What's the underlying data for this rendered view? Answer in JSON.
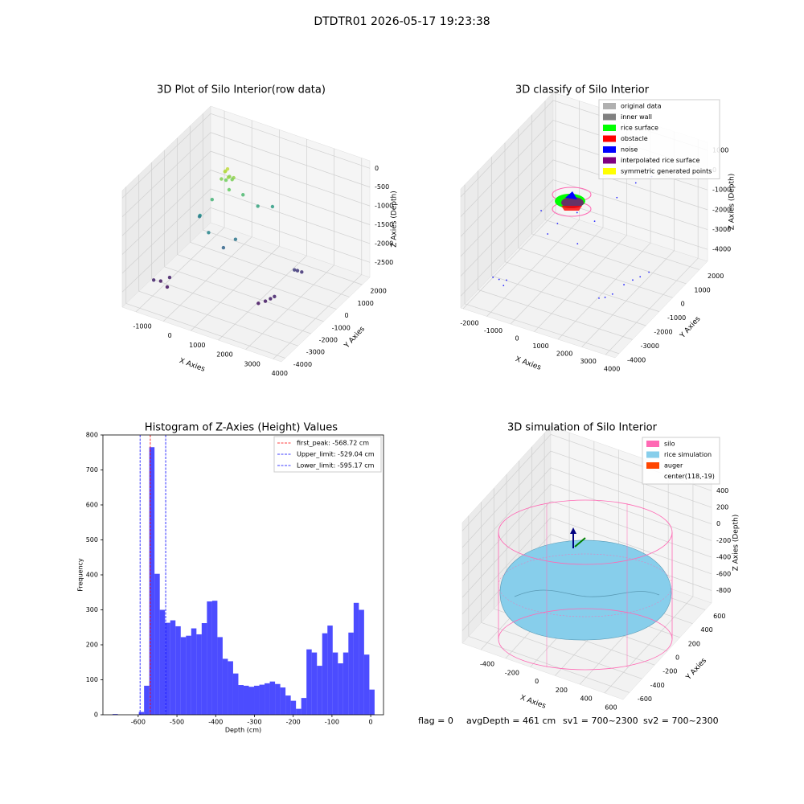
{
  "title": "DTDTR01 2026-05-17 19:23:38",
  "chart_data": [
    {
      "type": "scatter3d",
      "title": "3D Plot of Silo Interior(row data)",
      "xlabel": "X Axies",
      "ylabel": "Y Axies",
      "zlabel": "Z Axies (Depth)",
      "xlim": [
        -1500,
        4300
      ],
      "ylim": [
        -4300,
        2600
      ],
      "zlim": [
        -2900,
        200
      ],
      "xticks": [
        -1000,
        0,
        1000,
        2000,
        3000,
        4000
      ],
      "yticks": [
        -4000,
        -3000,
        -2000,
        -1000,
        0,
        1000,
        2000
      ],
      "zticks": [
        0,
        -500,
        -1000,
        -1500,
        -2000,
        -2500
      ],
      "colormap": "viridis",
      "points": {
        "x": [
          300,
          500,
          400,
          200,
          600,
          350,
          450,
          250,
          550,
          400,
          0,
          800,
          -300,
          1200,
          200,
          900,
          1500,
          -600,
          600,
          -990,
          -800,
          -1100,
          -700,
          2380,
          2500,
          2200,
          2600,
          2700,
          2800,
          2650
        ],
        "y": [
          -100,
          -300,
          0,
          -200,
          -100,
          -250,
          100,
          50,
          -350,
          -150,
          -500,
          200,
          -800,
          500,
          -1200,
          -600,
          1000,
          -200,
          -900,
          -2390,
          -2100,
          -2700,
          -2500,
          -1440,
          -1300,
          -1600,
          -1200,
          380,
          500,
          250
        ],
        "z": [
          -200,
          -250,
          -350,
          -400,
          -300,
          -150,
          -450,
          -500,
          -550,
          -100,
          -900,
          -800,
          -1300,
          -1100,
          -1500,
          -1700,
          -1200,
          -1600,
          -1900,
          -2700,
          -2650,
          -2600,
          -2750,
          -2700,
          -2650,
          -2750,
          -2600,
          -2400,
          -2450,
          -2350
        ]
      }
    },
    {
      "type": "scatter3d",
      "title": "3D classify of Silo Interior",
      "xlabel": "X Axies",
      "ylabel": "Y Axies",
      "zlabel": "Z Axies (Depth)",
      "xlim": [
        -2100,
        4400
      ],
      "ylim": [
        -4300,
        2600
      ],
      "zlim": [
        -4600,
        1400
      ],
      "xticks": [
        -2000,
        -1000,
        0,
        1000,
        2000,
        3000,
        4000
      ],
      "yticks": [
        -4000,
        -3000,
        -2000,
        -1000,
        0,
        1000,
        2000
      ],
      "zticks": [
        1000,
        0,
        -1000,
        -2000,
        -3000,
        -4000
      ],
      "color": "#0000ff",
      "points": {
        "x": [
          -1500,
          -1300,
          -1700,
          -1200,
          2400,
          2600,
          2200,
          2800,
          3000,
          3200,
          3400,
          0,
          -300,
          1000,
          600,
          1600,
          -800,
          2000,
          2500,
          200,
          900
        ],
        "y": [
          -2500,
          -2300,
          -2600,
          -2700,
          -1500,
          -1300,
          -1600,
          -800,
          -500,
          -300,
          0,
          -800,
          -1000,
          200,
          -400,
          800,
          -600,
          1500,
          1800,
          -200,
          -900
        ],
        "z": [
          -4200,
          -4300,
          -4100,
          -4250,
          -4300,
          -4200,
          -4350,
          -4000,
          -3900,
          -3800,
          -3700,
          -2000,
          -2500,
          -2200,
          -1500,
          -1200,
          -1800,
          -800,
          -500,
          -1000,
          -2600
        ]
      },
      "legend_position": "upper right",
      "legend": [
        {
          "name": "original data",
          "color": "#b0b0b0"
        },
        {
          "name": "inner wall",
          "color": "#808080"
        },
        {
          "name": "rice surface",
          "color": "#00ff00"
        },
        {
          "name": "obstacle",
          "color": "#ff0000"
        },
        {
          "name": "noise",
          "color": "#0000ff"
        },
        {
          "name": "interpolated rice surface",
          "color": "#800080"
        },
        {
          "name": "symmetric generated points",
          "color": "#ffff00"
        }
      ]
    },
    {
      "type": "histogram",
      "title": "Histogram of Z-Axies (Height) Values",
      "xlabel": "Depth (cm)",
      "ylabel": "Frequency",
      "xlim": [
        -691,
        33
      ],
      "ylim": [
        0,
        800
      ],
      "xticks": [
        -600,
        -500,
        -400,
        -300,
        -200,
        -100,
        0
      ],
      "yticks": [
        0,
        100,
        200,
        300,
        400,
        500,
        600,
        700,
        800
      ],
      "color": "#0000ff",
      "bins": [
        -666,
        -652.48,
        -638.96,
        -625.44,
        -611.92,
        -598.4,
        -584.88,
        -571.36,
        -557.84,
        -544.32,
        -530.8,
        -517.28,
        -503.76,
        -490.24,
        -476.72,
        -463.2,
        -449.68,
        -436.16,
        -422.64,
        -409.12,
        -395.6,
        -382.08,
        -368.56,
        -355.04,
        -341.52,
        -328,
        -314.48,
        -300.96,
        -287.44,
        -273.92,
        -260.4,
        -246.88,
        -233.36,
        -219.84,
        -206.32,
        -192.8,
        -179.28,
        -165.76,
        -152.24,
        -138.72,
        -125.2,
        -111.68,
        -98.16,
        -84.64,
        -71.12,
        -57.6,
        -44.08,
        -30.56,
        -17.04,
        -3.52,
        10
      ],
      "counts": [
        2,
        0,
        0,
        0,
        0,
        8,
        83,
        765,
        403,
        300,
        263,
        270,
        253,
        222,
        226,
        247,
        230,
        262,
        324,
        326,
        222,
        160,
        153,
        118,
        85,
        83,
        80,
        83,
        86,
        90,
        95,
        88,
        78,
        55,
        40,
        17,
        48,
        187,
        178,
        140,
        233,
        255,
        178,
        147,
        178,
        235,
        320,
        300,
        172,
        72
      ],
      "vlines": [
        {
          "value": -568.72,
          "label": "first_peak: -568.72 cm",
          "color": "#ff0000"
        },
        {
          "value": -529.04,
          "label": "Upper_limit: -529.04 cm",
          "color": "#0000ff"
        },
        {
          "value": -595.17,
          "label": "Lower_limit: -595.17 cm",
          "color": "#0000ff"
        }
      ],
      "legend_position": "upper right"
    },
    {
      "type": "surface3d",
      "title": "3D simulation of Silo Interior",
      "xlabel": "X Axies",
      "ylabel": "Y Axies",
      "zlabel": "Z Axies (Depth)",
      "xlim": [
        -550,
        750
      ],
      "ylim": [
        -700,
        700
      ],
      "zlim": [
        -950,
        500
      ],
      "xticks": [
        -400,
        -200,
        0,
        200,
        400,
        600
      ],
      "yticks": [
        -600,
        -400,
        -200,
        0,
        200,
        400,
        600
      ],
      "zticks": [
        400,
        200,
        0,
        -200,
        -400,
        -600,
        -800
      ],
      "legend_position": "upper right",
      "legend": [
        {
          "name": "silo",
          "color": "#ff69b4"
        },
        {
          "name": "rice simulation",
          "color": "#87ceeb"
        },
        {
          "name": "auger",
          "color": "#ff4500"
        },
        {
          "name": "center(118,-19)",
          "color": null
        }
      ]
    }
  ],
  "footer": [
    "flag = 0",
    "avgDepth = 461 cm",
    "sv1 = 700~2300",
    "sv2 = 700~2300"
  ]
}
